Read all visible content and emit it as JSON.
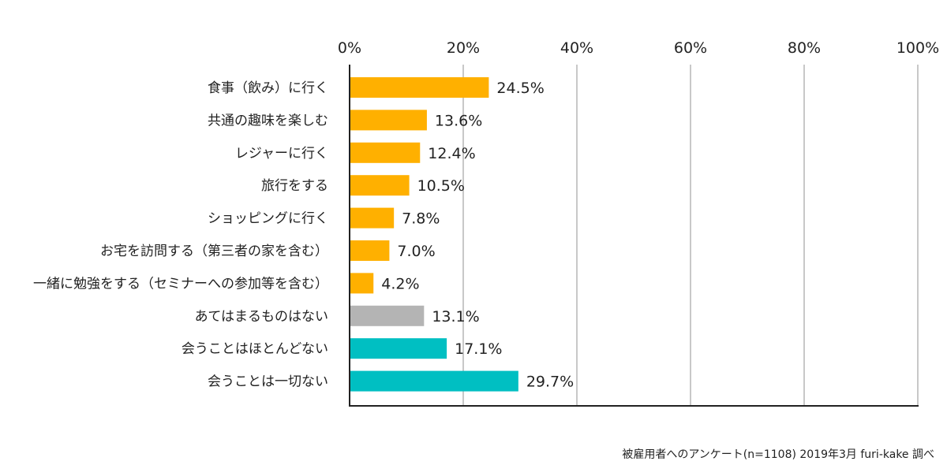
{
  "chart_data": {
    "type": "bar",
    "orientation": "horizontal",
    "categories": [
      "食事（飲み）に行く",
      "共通の趣味を楽しむ",
      "レジャーに行く",
      "旅行をする",
      "ショッピングに行く",
      "お宅を訪問する（第三者の家を含む）",
      "一緒に勉強をする（セミナーへの参加等を含む）",
      "あてはまるものはない",
      "会うことはほとんどない",
      "会うことは一切ない"
    ],
    "values": [
      24.5,
      13.6,
      12.4,
      10.5,
      7.8,
      7.0,
      4.2,
      13.1,
      17.1,
      29.7
    ],
    "value_labels": [
      "24.5%",
      "13.6%",
      "12.4%",
      "10.5%",
      "7.8%",
      "7.0%",
      "4.2%",
      "13.1%",
      "17.1%",
      "29.7%"
    ],
    "bar_colors": [
      "#FFB000",
      "#FFB000",
      "#FFB000",
      "#FFB000",
      "#FFB000",
      "#FFB000",
      "#FFB000",
      "#B4B4B4",
      "#00BFC2",
      "#00BFC2"
    ],
    "xlim": [
      0,
      100
    ],
    "x_ticks": [
      0,
      20,
      40,
      60,
      80,
      100
    ],
    "x_tick_labels": [
      "0%",
      "20%",
      "40%",
      "60%",
      "80%",
      "100%"
    ],
    "x_axis_position": "top",
    "grid": true,
    "gridline_color": "#C8C8C8",
    "axis_color": "#222222"
  },
  "source_note": "被雇用者へのアンケート(n=1108) 2019年3月 furi-kake 調べ"
}
